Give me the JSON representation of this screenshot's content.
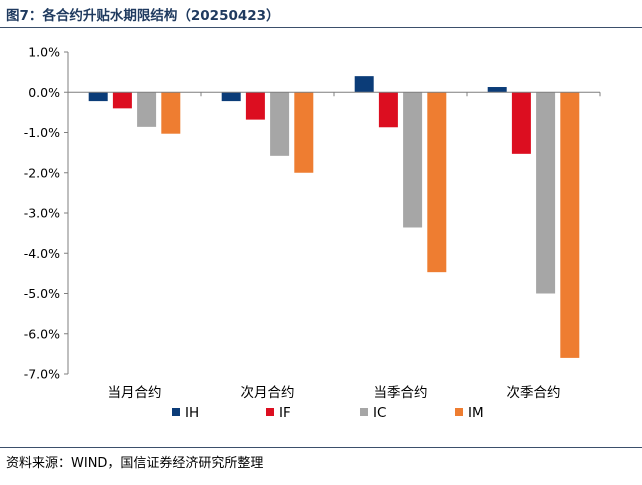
{
  "figure": {
    "title": "图7：各合约升贴水期限结构（20250423）",
    "source": "资料来源：WIND，国信证券经济研究所整理"
  },
  "chart_data": {
    "type": "bar",
    "categories": [
      "当月合约",
      "次月合约",
      "当季合约",
      "次季合约"
    ],
    "series": [
      {
        "name": "IH",
        "color": "#0b3c78",
        "values": [
          -0.22,
          -0.22,
          0.4,
          0.13
        ]
      },
      {
        "name": "IF",
        "color": "#dc0e20",
        "values": [
          -0.4,
          -0.68,
          -0.87,
          -1.53
        ]
      },
      {
        "name": "IC",
        "color": "#a6a6a6",
        "values": [
          -0.86,
          -1.58,
          -3.36,
          -5.0
        ]
      },
      {
        "name": "IM",
        "color": "#ee7d31",
        "values": [
          -1.03,
          -2.0,
          -4.47,
          -6.6
        ]
      }
    ],
    "ylim": [
      -7.0,
      1.0
    ],
    "yticks": [
      "1.0%",
      "0.0%",
      "-1.0%",
      "-2.0%",
      "-3.0%",
      "-4.0%",
      "-5.0%",
      "-6.0%",
      "-7.0%"
    ],
    "legend_position": "bottom",
    "grid": false
  }
}
